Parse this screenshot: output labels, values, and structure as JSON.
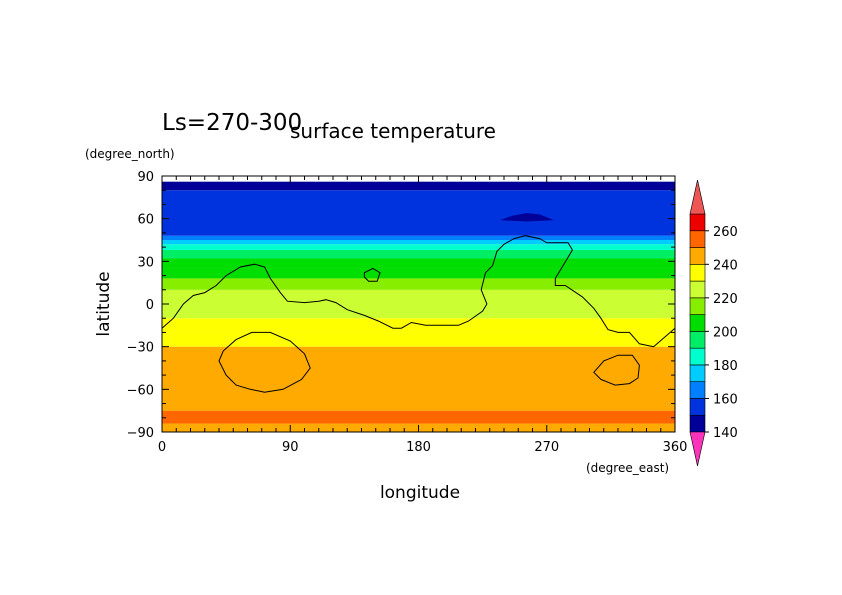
{
  "chart_data": {
    "type": "heatmap",
    "title": "surface temperature",
    "subtitle": "Ls=270-300",
    "xlabel": "longitude",
    "ylabel": "latitude",
    "xunit": "(degree_east)",
    "yunit": "(degree_north)",
    "xlim": [
      0,
      360
    ],
    "ylim": [
      -90,
      90
    ],
    "xticks": [
      0,
      90,
      180,
      270,
      360
    ],
    "yticks": [
      90,
      60,
      30,
      0,
      -30,
      -60,
      -90
    ],
    "colorbar": {
      "levels": [
        140,
        150,
        160,
        170,
        180,
        190,
        200,
        210,
        220,
        230,
        240,
        250,
        260,
        270
      ],
      "tick_labels": [
        140,
        160,
        180,
        200,
        220,
        240,
        260
      ],
      "colors": [
        "#000099",
        "#0033dd",
        "#0080ff",
        "#00ccff",
        "#00ffcc",
        "#00ee66",
        "#00dd00",
        "#88ee00",
        "#ccff33",
        "#ffff00",
        "#ffaa00",
        "#ff6600",
        "#ee0000"
      ],
      "over_color": "#ee5555",
      "under_color": "#ff33bb"
    },
    "latitude_bands": [
      {
        "lat_min": -90,
        "lat_max": -84,
        "value": 245
      },
      {
        "lat_min": -84,
        "lat_max": -75,
        "value": 251
      },
      {
        "lat_min": -75,
        "lat_max": -30,
        "value": 242
      },
      {
        "lat_min": -30,
        "lat_max": -20,
        "value": 236
      },
      {
        "lat_min": -20,
        "lat_max": -10,
        "value": 233
      },
      {
        "lat_min": -10,
        "lat_max": 0,
        "value": 227
      },
      {
        "lat_min": 0,
        "lat_max": 10,
        "value": 222
      },
      {
        "lat_min": 10,
        "lat_max": 18,
        "value": 215
      },
      {
        "lat_min": 18,
        "lat_max": 25,
        "value": 208
      },
      {
        "lat_min": 25,
        "lat_max": 32,
        "value": 202
      },
      {
        "lat_min": 32,
        "lat_max": 38,
        "value": 195
      },
      {
        "lat_min": 38,
        "lat_max": 42,
        "value": 185
      },
      {
        "lat_min": 42,
        "lat_max": 45,
        "value": 175
      },
      {
        "lat_min": 45,
        "lat_max": 48,
        "value": 165
      },
      {
        "lat_min": 48,
        "lat_max": 80,
        "value": 155
      },
      {
        "lat_min": 80,
        "lat_max": 86,
        "value": 145
      }
    ],
    "contours": [
      {
        "name": "coastline",
        "closed": false,
        "points": [
          [
            0,
            -17
          ],
          [
            8,
            -10
          ],
          [
            15,
            0
          ],
          [
            22,
            6
          ],
          [
            30,
            8
          ],
          [
            38,
            13
          ],
          [
            45,
            20
          ],
          [
            55,
            26
          ],
          [
            65,
            28
          ],
          [
            72,
            26
          ],
          [
            76,
            18
          ],
          [
            83,
            8
          ],
          [
            88,
            2
          ],
          [
            100,
            1
          ],
          [
            110,
            2
          ],
          [
            115,
            3
          ],
          [
            122,
            1
          ],
          [
            130,
            -4
          ],
          [
            142,
            -8
          ],
          [
            152,
            -12
          ],
          [
            162,
            -17
          ],
          [
            168,
            -17
          ],
          [
            175,
            -13
          ],
          [
            185,
            -15
          ],
          [
            200,
            -15
          ],
          [
            208,
            -15
          ],
          [
            215,
            -12
          ],
          [
            225,
            -5
          ],
          [
            228,
            0
          ],
          [
            224,
            10
          ],
          [
            227,
            22
          ],
          [
            232,
            27
          ],
          [
            235,
            37
          ],
          [
            240,
            42
          ],
          [
            247,
            46
          ],
          [
            255,
            48
          ],
          [
            265,
            46
          ],
          [
            270,
            43
          ],
          [
            285,
            43
          ],
          [
            288,
            38
          ],
          [
            282,
            28
          ],
          [
            276,
            18
          ],
          [
            276,
            13
          ],
          [
            283,
            13
          ],
          [
            295,
            5
          ],
          [
            303,
            -3
          ],
          [
            308,
            -10
          ],
          [
            313,
            -18
          ],
          [
            320,
            -20
          ],
          [
            328,
            -20
          ],
          [
            335,
            -28
          ],
          [
            345,
            -30
          ],
          [
            360,
            -17
          ]
        ]
      },
      {
        "name": "island",
        "closed": true,
        "points": [
          [
            142,
            22
          ],
          [
            148,
            25
          ],
          [
            153,
            22
          ],
          [
            151,
            16
          ],
          [
            145,
            16
          ],
          [
            142,
            19
          ]
        ]
      },
      {
        "name": "south-ring-west",
        "closed": true,
        "points": [
          [
            40,
            -40
          ],
          [
            45,
            -50
          ],
          [
            52,
            -57
          ],
          [
            62,
            -60
          ],
          [
            72,
            -62
          ],
          [
            85,
            -60
          ],
          [
            98,
            -53
          ],
          [
            104,
            -45
          ],
          [
            100,
            -35
          ],
          [
            90,
            -26
          ],
          [
            76,
            -20
          ],
          [
            63,
            -20
          ],
          [
            52,
            -25
          ],
          [
            43,
            -33
          ]
        ]
      },
      {
        "name": "south-ring-east",
        "closed": true,
        "points": [
          [
            303,
            -48
          ],
          [
            308,
            -53
          ],
          [
            318,
            -57
          ],
          [
            328,
            -56
          ],
          [
            334,
            -52
          ],
          [
            335,
            -43
          ],
          [
            330,
            -36
          ],
          [
            320,
            -36
          ],
          [
            310,
            -40
          ]
        ]
      }
    ],
    "blobs": [
      {
        "name": "north-cold-spot",
        "value": 145,
        "points": [
          [
            237,
            59
          ],
          [
            246,
            62
          ],
          [
            256,
            64
          ],
          [
            265,
            63
          ],
          [
            275,
            59
          ],
          [
            256,
            58
          ]
        ]
      }
    ]
  }
}
